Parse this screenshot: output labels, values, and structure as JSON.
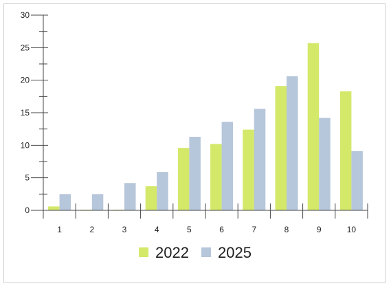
{
  "chart_data": {
    "type": "bar",
    "categories": [
      "1",
      "2",
      "3",
      "4",
      "5",
      "6",
      "7",
      "8",
      "9",
      "10"
    ],
    "series": [
      {
        "name": "2022",
        "color": "#d4e86a",
        "values": [
          0.6,
          0.1,
          0.1,
          3.7,
          9.6,
          10.2,
          12.4,
          19.1,
          25.7,
          18.3
        ]
      },
      {
        "name": "2025",
        "color": "#b6c6db",
        "values": [
          2.5,
          2.5,
          4.2,
          5.9,
          11.3,
          13.6,
          15.6,
          20.6,
          14.2,
          9.1
        ]
      }
    ],
    "ylim": [
      0,
      30
    ],
    "yticks": [
      "0",
      "5",
      "10",
      "15",
      "20",
      "25",
      "30"
    ],
    "title": "",
    "xlabel": "",
    "ylabel": "",
    "grid": false,
    "legend_position": "bottom-center"
  }
}
